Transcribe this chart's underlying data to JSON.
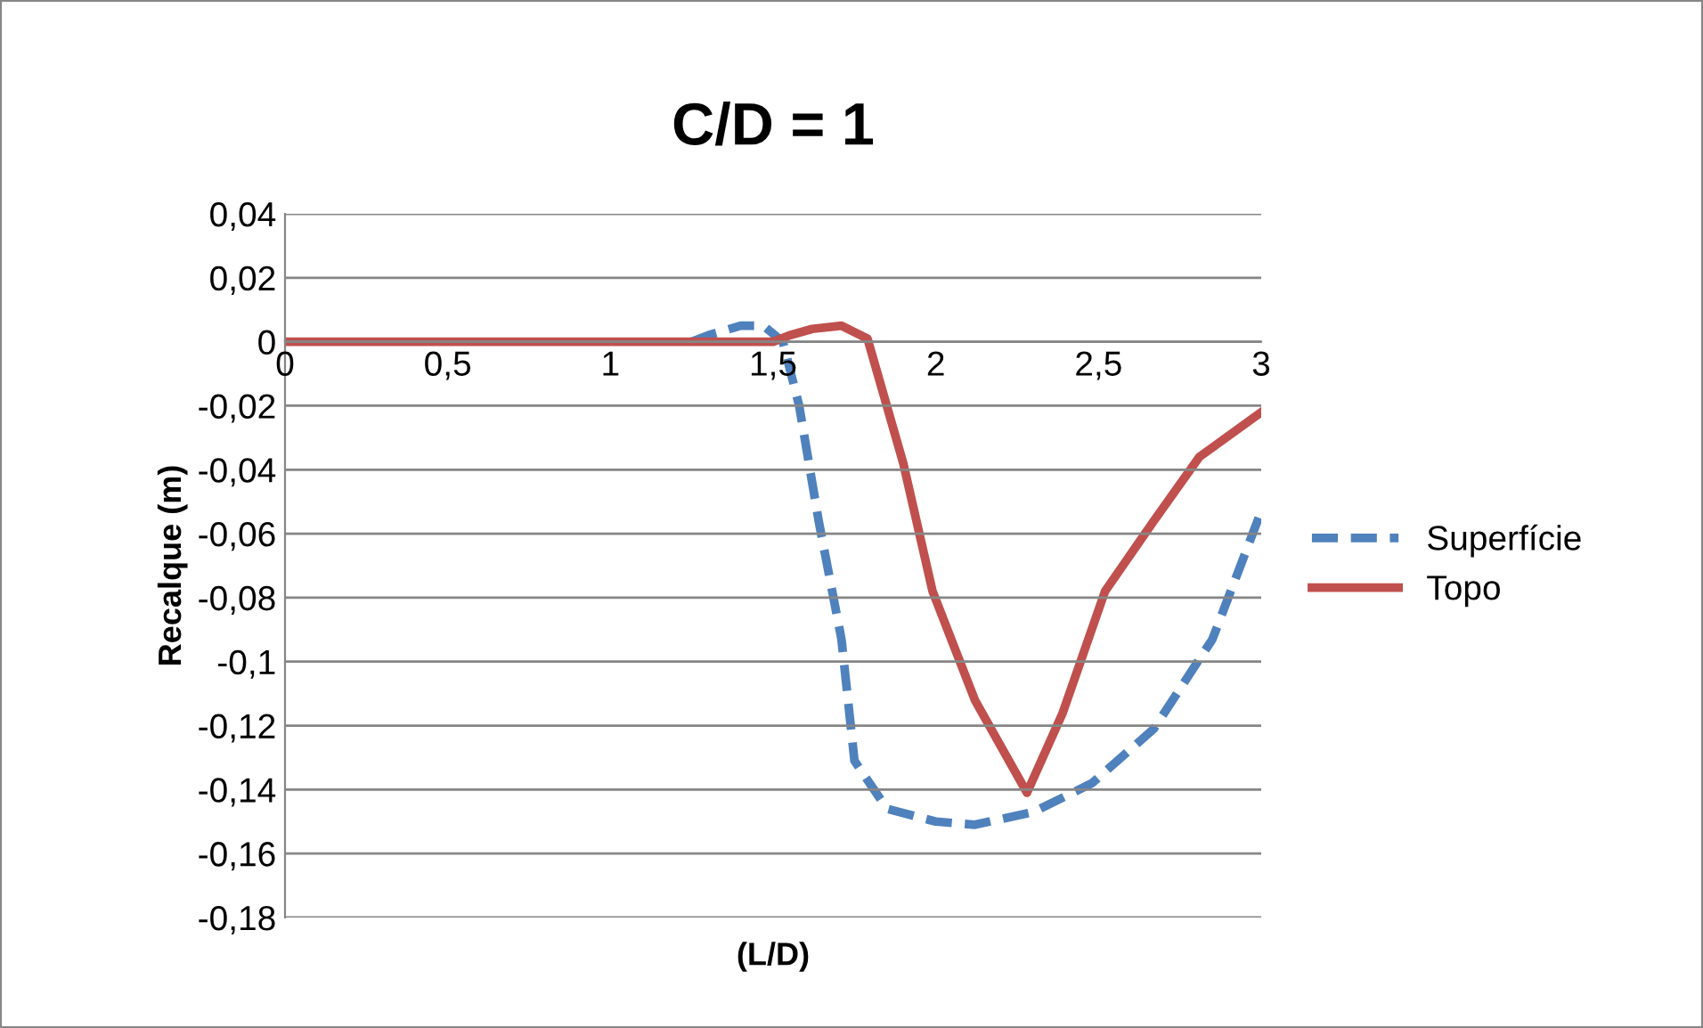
{
  "chart_data": {
    "type": "line",
    "title": "C/D = 1",
    "xlabel": "(L/D)",
    "ylabel": "Recalque (m)",
    "xlim": [
      0,
      3
    ],
    "xticks": [
      0,
      {
        "value": 0.5,
        "label": "0,5"
      },
      1,
      {
        "value": 1.5,
        "label": "1,5"
      },
      2,
      {
        "value": 2.5,
        "label": "2,5"
      },
      3
    ],
    "ylim": [
      -0.18,
      0.04
    ],
    "yticks": [
      {
        "value": -0.18,
        "label": "-0,18"
      },
      {
        "value": -0.16,
        "label": "-0,16"
      },
      {
        "value": -0.14,
        "label": "-0,14"
      },
      {
        "value": -0.12,
        "label": "-0,12"
      },
      {
        "value": -0.1,
        "label": "-0,1"
      },
      {
        "value": -0.08,
        "label": "-0,08"
      },
      {
        "value": -0.06,
        "label": "-0,06"
      },
      {
        "value": -0.04,
        "label": "-0,04"
      },
      {
        "value": -0.02,
        "label": "-0,02"
      },
      {
        "value": 0,
        "label": "0"
      },
      {
        "value": 0.02,
        "label": "0,02"
      },
      {
        "value": 0.04,
        "label": "0,04"
      }
    ],
    "grid": "y",
    "legend": "right",
    "marker": "none",
    "series": [
      {
        "name": "Superfície",
        "color": "#4f81bd",
        "line_style": "dashed",
        "x": [
          1.25,
          1.3,
          1.4,
          1.47,
          1.53,
          1.58,
          1.64,
          1.71,
          1.75,
          1.85,
          2.0,
          2.12,
          2.3,
          2.48,
          2.67,
          2.85,
          3.0
        ],
        "values": [
          0,
          0.002,
          0.005,
          0.005,
          0,
          -0.02,
          -0.056,
          -0.093,
          -0.131,
          -0.146,
          -0.15,
          -0.151,
          -0.147,
          -0.138,
          -0.121,
          -0.093,
          -0.053
        ]
      },
      {
        "name": "Topo",
        "color": "#c0504d",
        "line_style": "solid",
        "x": [
          0,
          0.5,
          1,
          1.5,
          1.55,
          1.62,
          1.71,
          1.79,
          1.9,
          1.99,
          2.12,
          2.28,
          2.39,
          2.52,
          2.67,
          2.81,
          3.0
        ],
        "values": [
          0,
          0,
          0,
          0,
          0.002,
          0.004,
          0.005,
          0.001,
          -0.038,
          -0.078,
          -0.112,
          -0.141,
          -0.116,
          -0.078,
          -0.056,
          -0.036,
          -0.022
        ]
      }
    ]
  }
}
